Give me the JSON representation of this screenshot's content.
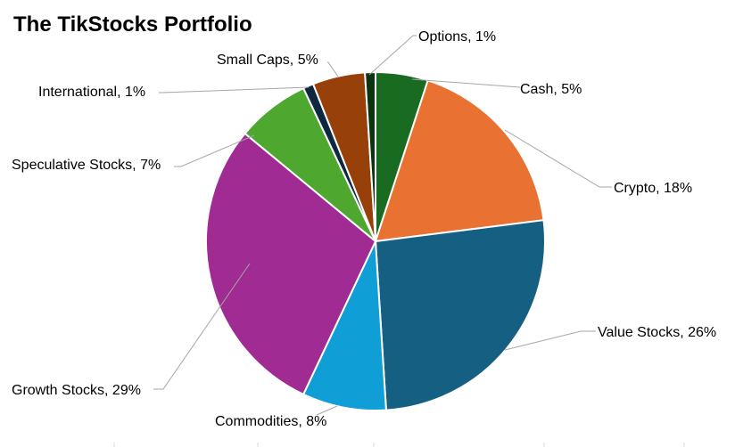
{
  "chart_data": {
    "type": "pie",
    "title": "The TikStocks Portfolio",
    "start_category": "Cash",
    "direction": "clockwise",
    "slices": [
      {
        "label": "Cash",
        "value": 5,
        "display": "Cash, 5%",
        "color": "#1a6b22"
      },
      {
        "label": "Crypto",
        "value": 18,
        "display": "Crypto, 18%",
        "color": "#e97132"
      },
      {
        "label": "Value Stocks",
        "value": 26,
        "display": "Value Stocks, 26%",
        "color": "#156082"
      },
      {
        "label": "Commodities",
        "value": 8,
        "display": "Commodities, 8%",
        "color": "#0f9ed5"
      },
      {
        "label": "Growth Stocks",
        "value": 29,
        "display": "Growth Stocks, 29%",
        "color": "#a02b93"
      },
      {
        "label": "Speculative Stocks",
        "value": 7,
        "display": "Speculative Stocks, 7%",
        "color": "#4ea72e"
      },
      {
        "label": "International",
        "value": 1,
        "display": "International, 1%",
        "color": "#0e2841"
      },
      {
        "label": "Small Caps",
        "value": 5,
        "display": "Small Caps, 5%",
        "color": "#974009"
      },
      {
        "label": "Options",
        "value": 1,
        "display": "Options, 1%",
        "color": "#0c3311"
      }
    ]
  }
}
